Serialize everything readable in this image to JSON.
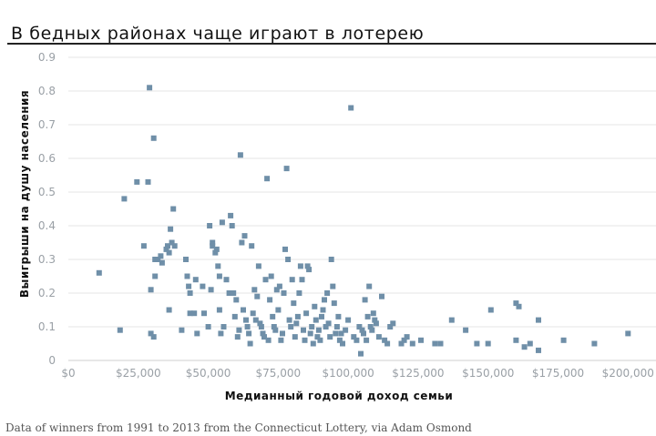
{
  "title": "В бедных районах чаще играют в лотерею",
  "source": "Data of winners from 1991 to 2013 from the Connecticut Lottery, via Adam Osmond",
  "colors": {
    "point": "#6f8fa8",
    "grid": "#e6e6e6",
    "axis": "#cfcfcf"
  },
  "chart_data": {
    "type": "scatter",
    "xlabel": "Медианный годовой доход семьи",
    "ylabel": "Выигрыши на душу населения",
    "xlim": [
      0,
      210000
    ],
    "ylim": [
      0,
      0.9
    ],
    "x_ticks": [
      0,
      25000,
      50000,
      75000,
      100000,
      125000,
      150000,
      175000,
      200000
    ],
    "x_tick_labels": [
      "$0",
      "$25,000",
      "$50,000",
      "$75,000",
      "$100,000",
      "$125,000",
      "$150,000",
      "$175,000",
      "$200,000"
    ],
    "y_ticks": [
      0,
      0.1,
      0.2,
      0.3,
      0.4,
      0.5,
      0.6,
      0.7,
      0.8,
      0.9
    ],
    "y_tick_labels": [
      "0",
      "0.1",
      "0.2",
      "0.3",
      "0.4",
      "0.5",
      "0.6",
      "0.7",
      "0.8",
      "0.9"
    ],
    "grid": true,
    "points": [
      [
        11000,
        0.26
      ],
      [
        18500,
        0.09
      ],
      [
        20000,
        0.48
      ],
      [
        24500,
        0.53
      ],
      [
        27000,
        0.34
      ],
      [
        28500,
        0.53
      ],
      [
        29000,
        0.81
      ],
      [
        29500,
        0.21
      ],
      [
        29500,
        0.08
      ],
      [
        30500,
        0.07
      ],
      [
        30500,
        0.66
      ],
      [
        31000,
        0.3
      ],
      [
        31000,
        0.25
      ],
      [
        32000,
        0.3
      ],
      [
        33000,
        0.31
      ],
      [
        33500,
        0.29
      ],
      [
        35000,
        0.33
      ],
      [
        35500,
        0.34
      ],
      [
        36000,
        0.15
      ],
      [
        36000,
        0.32
      ],
      [
        36500,
        0.39
      ],
      [
        37500,
        0.45
      ],
      [
        37000,
        0.35
      ],
      [
        38000,
        0.34
      ],
      [
        40500,
        0.09
      ],
      [
        42000,
        0.3
      ],
      [
        42500,
        0.25
      ],
      [
        43000,
        0.22
      ],
      [
        43500,
        0.2
      ],
      [
        43500,
        0.14
      ],
      [
        45000,
        0.14
      ],
      [
        45500,
        0.24
      ],
      [
        46000,
        0.08
      ],
      [
        48000,
        0.22
      ],
      [
        48500,
        0.14
      ],
      [
        50000,
        0.1
      ],
      [
        50500,
        0.4
      ],
      [
        51000,
        0.21
      ],
      [
        51500,
        0.34
      ],
      [
        51500,
        0.35
      ],
      [
        52500,
        0.32
      ],
      [
        53000,
        0.33
      ],
      [
        53500,
        0.28
      ],
      [
        54000,
        0.25
      ],
      [
        55000,
        0.41
      ],
      [
        54000,
        0.15
      ],
      [
        54500,
        0.08
      ],
      [
        55500,
        0.1
      ],
      [
        56500,
        0.24
      ],
      [
        57500,
        0.2
      ],
      [
        58000,
        0.43
      ],
      [
        58500,
        0.4
      ],
      [
        59000,
        0.2
      ],
      [
        59500,
        0.13
      ],
      [
        60000,
        0.18
      ],
      [
        60500,
        0.07
      ],
      [
        61000,
        0.09
      ],
      [
        61500,
        0.61
      ],
      [
        62000,
        0.35
      ],
      [
        62500,
        0.15
      ],
      [
        63000,
        0.37
      ],
      [
        63500,
        0.12
      ],
      [
        64000,
        0.1
      ],
      [
        64500,
        0.08
      ],
      [
        65000,
        0.05
      ],
      [
        65500,
        0.34
      ],
      [
        66000,
        0.14
      ],
      [
        66500,
        0.21
      ],
      [
        67000,
        0.12
      ],
      [
        67500,
        0.19
      ],
      [
        68000,
        0.28
      ],
      [
        68500,
        0.11
      ],
      [
        69000,
        0.1
      ],
      [
        69500,
        0.08
      ],
      [
        70000,
        0.07
      ],
      [
        70500,
        0.24
      ],
      [
        71000,
        0.54
      ],
      [
        71500,
        0.06
      ],
      [
        72000,
        0.18
      ],
      [
        72500,
        0.25
      ],
      [
        73000,
        0.13
      ],
      [
        73500,
        0.1
      ],
      [
        74000,
        0.09
      ],
      [
        74500,
        0.21
      ],
      [
        75000,
        0.15
      ],
      [
        75500,
        0.22
      ],
      [
        76000,
        0.06
      ],
      [
        76500,
        0.08
      ],
      [
        77000,
        0.2
      ],
      [
        77500,
        0.33
      ],
      [
        78000,
        0.57
      ],
      [
        78500,
        0.3
      ],
      [
        79000,
        0.12
      ],
      [
        79500,
        0.1
      ],
      [
        80000,
        0.24
      ],
      [
        80500,
        0.17
      ],
      [
        81000,
        0.07
      ],
      [
        81500,
        0.11
      ],
      [
        82000,
        0.13
      ],
      [
        82500,
        0.2
      ],
      [
        83000,
        0.28
      ],
      [
        83500,
        0.24
      ],
      [
        84000,
        0.09
      ],
      [
        84500,
        0.06
      ],
      [
        85000,
        0.14
      ],
      [
        85500,
        0.28
      ],
      [
        86000,
        0.27
      ],
      [
        86500,
        0.08
      ],
      [
        87000,
        0.1
      ],
      [
        87500,
        0.05
      ],
      [
        88000,
        0.16
      ],
      [
        88500,
        0.12
      ],
      [
        89000,
        0.07
      ],
      [
        89500,
        0.09
      ],
      [
        90000,
        0.06
      ],
      [
        90500,
        0.13
      ],
      [
        91000,
        0.15
      ],
      [
        91500,
        0.18
      ],
      [
        92000,
        0.1
      ],
      [
        92500,
        0.2
      ],
      [
        93000,
        0.11
      ],
      [
        93500,
        0.07
      ],
      [
        94000,
        0.3
      ],
      [
        94500,
        0.22
      ],
      [
        95000,
        0.17
      ],
      [
        95500,
        0.08
      ],
      [
        96000,
        0.1
      ],
      [
        96500,
        0.13
      ],
      [
        97000,
        0.06
      ],
      [
        97500,
        0.08
      ],
      [
        98000,
        0.05
      ],
      [
        99000,
        0.09
      ],
      [
        100000,
        0.12
      ],
      [
        101000,
        0.75
      ],
      [
        102000,
        0.07
      ],
      [
        103000,
        0.06
      ],
      [
        104000,
        0.1
      ],
      [
        104500,
        0.02
      ],
      [
        105000,
        0.09
      ],
      [
        105500,
        0.08
      ],
      [
        106000,
        0.18
      ],
      [
        106500,
        0.06
      ],
      [
        107000,
        0.13
      ],
      [
        107500,
        0.22
      ],
      [
        108000,
        0.1
      ],
      [
        108500,
        0.09
      ],
      [
        109000,
        0.14
      ],
      [
        109500,
        0.12
      ],
      [
        110000,
        0.11
      ],
      [
        111000,
        0.07
      ],
      [
        112000,
        0.19
      ],
      [
        113000,
        0.06
      ],
      [
        114000,
        0.05
      ],
      [
        115000,
        0.1
      ],
      [
        116000,
        0.11
      ],
      [
        119000,
        0.05
      ],
      [
        120000,
        0.06
      ],
      [
        121000,
        0.07
      ],
      [
        123000,
        0.05
      ],
      [
        126000,
        0.06
      ],
      [
        131000,
        0.05
      ],
      [
        133000,
        0.05
      ],
      [
        137000,
        0.12
      ],
      [
        142000,
        0.09
      ],
      [
        146000,
        0.05
      ],
      [
        150000,
        0.05
      ],
      [
        151000,
        0.15
      ],
      [
        160000,
        0.17
      ],
      [
        161000,
        0.16
      ],
      [
        160000,
        0.06
      ],
      [
        163000,
        0.04
      ],
      [
        165000,
        0.05
      ],
      [
        168000,
        0.12
      ],
      [
        168000,
        0.03
      ],
      [
        177000,
        0.06
      ],
      [
        188000,
        0.05
      ],
      [
        200000,
        0.08
      ]
    ]
  }
}
